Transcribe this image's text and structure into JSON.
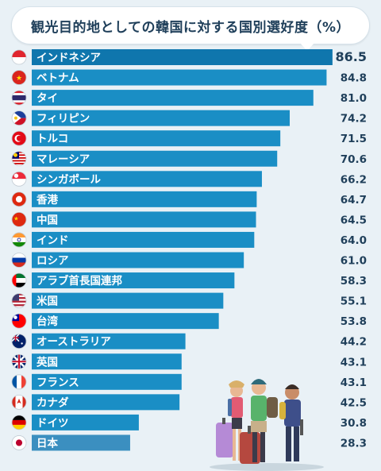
{
  "title": "観光目的地としての韓国に対する国別選好度（%）",
  "colors": {
    "bar": "#1a8ec5",
    "bar_top": "#0f76ad",
    "bar_japan": "#3b8fc0",
    "background": "#e9f1f6",
    "text": "#1f3f5a"
  },
  "chart_data": {
    "type": "bar",
    "orientation": "horizontal",
    "title": "観光目的地としての韓国に対する国別選好度（%）",
    "xlim": [
      0,
      100
    ],
    "grid": false,
    "categories": [
      "インドネシア",
      "ベトナム",
      "タイ",
      "フィリピン",
      "トルコ",
      "マレーシア",
      "シンガポール",
      "香港",
      "中国",
      "インド",
      "ロシア",
      "アラブ首長国連邦",
      "米国",
      "台湾",
      "オーストラリア",
      "英国",
      "フランス",
      "カナダ",
      "ドイツ",
      "日本"
    ],
    "values": [
      86.5,
      84.8,
      81.0,
      74.2,
      71.5,
      70.6,
      66.2,
      64.7,
      64.5,
      64.0,
      61.0,
      58.3,
      55.1,
      53.8,
      44.2,
      43.1,
      43.1,
      42.5,
      30.8,
      28.3
    ],
    "value_labels": [
      "86.5",
      "84.8",
      "81.0",
      "74.2",
      "71.5",
      "70.6",
      "66.2",
      "64.7",
      "64.5",
      "64.0",
      "61.0",
      "58.3",
      "55.1",
      "53.8",
      "44.2",
      "43.1",
      "43.1",
      "42.5",
      "30.8",
      "28.3"
    ],
    "flags": [
      "indonesia-flag",
      "vietnam-flag",
      "thailand-flag",
      "philippines-flag",
      "turkey-flag",
      "malaysia-flag",
      "singapore-flag",
      "hong-kong-flag",
      "china-flag",
      "india-flag",
      "russia-flag",
      "uae-flag",
      "usa-flag",
      "taiwan-flag",
      "australia-flag",
      "uk-flag",
      "france-flag",
      "canada-flag",
      "germany-flag",
      "japan-flag"
    ]
  },
  "illustration": "travellers-with-luggage"
}
